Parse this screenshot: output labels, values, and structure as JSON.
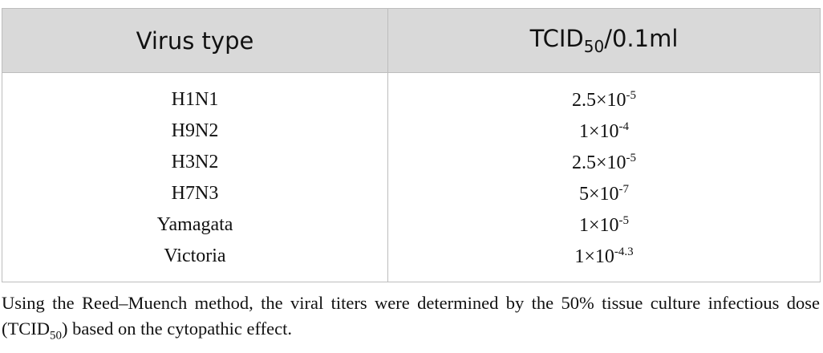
{
  "table": {
    "header": [
      "Virus type",
      {
        "base": "TCID",
        "sub": "50",
        "rest": "/0.1ml"
      }
    ],
    "rows": [
      [
        "H1N1",
        {
          "base": "2.5×10",
          "sup": "-5"
        }
      ],
      [
        "H9N2",
        {
          "base": "1×10",
          "sup": "-4"
        }
      ],
      [
        "H3N2",
        {
          "base": "2.5×10",
          "sup": "-5"
        }
      ],
      [
        "H7N3",
        {
          "base": "5×10",
          "sup": "-7"
        }
      ],
      [
        "Yamagata",
        {
          "base": "1×10",
          "sup": "-5"
        }
      ],
      [
        "Victoria",
        {
          "base": "1×10",
          "sup": "-4.3"
        }
      ]
    ]
  },
  "footnote": {
    "base": "Using the Reed–Muench method, the viral titers were determined by the 50% tissue culture infectious dose (TCID",
    "sub": "50",
    "rest": ") based on the cytopathic effect."
  }
}
